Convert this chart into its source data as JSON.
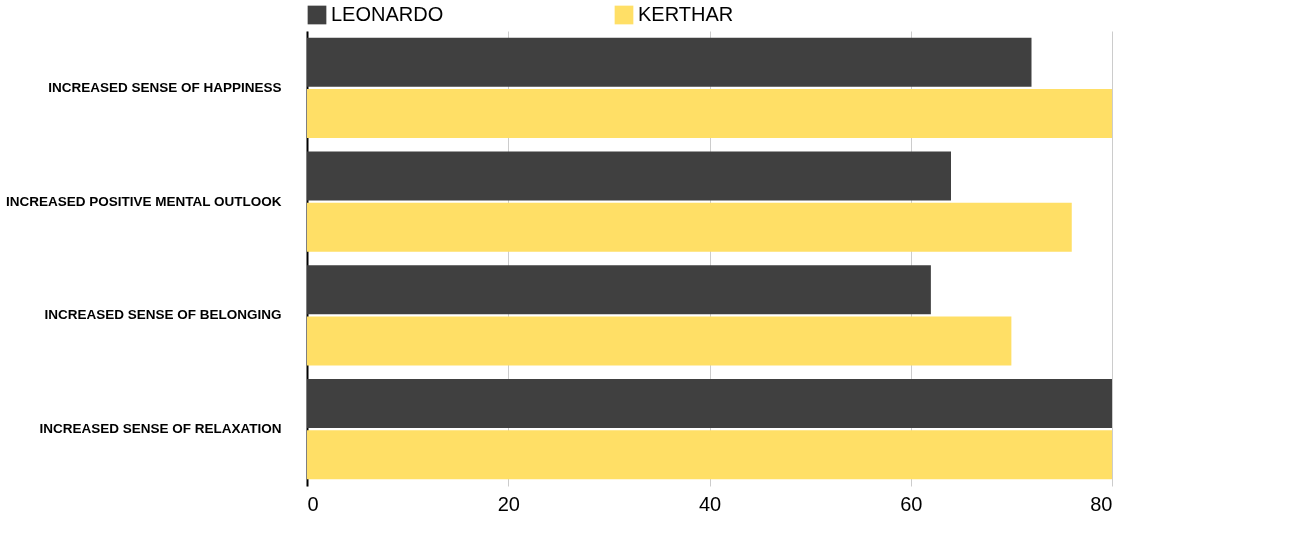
{
  "chart_data": {
    "type": "bar",
    "orientation": "horizontal",
    "categories": [
      "INCREASED SENSE OF HAPPINESS",
      "INCREASED POSITIVE MENTAL OUTLOOK",
      "INCREASED SENSE OF BELONGING",
      "INCREASED SENSE OF RELAXATION"
    ],
    "series": [
      {
        "name": "LEONARDO",
        "color": "#404040",
        "values": [
          72,
          64,
          62,
          80
        ]
      },
      {
        "name": "KERTHAR",
        "color": "#ffdf66",
        "values": [
          80,
          76,
          70,
          80
        ]
      }
    ],
    "xlim": [
      0,
      80
    ],
    "xticks": [
      0,
      20,
      40,
      60,
      80
    ],
    "grid": "x",
    "legend": "top"
  }
}
